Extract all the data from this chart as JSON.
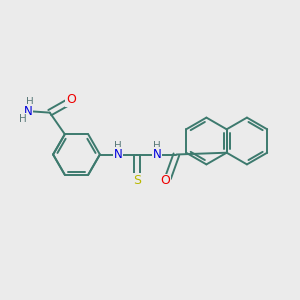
{
  "background_color": "#ebebeb",
  "bond_color": "#3d7a6e",
  "bond_width": 1.4,
  "atom_colors": {
    "N": "#0000dd",
    "O": "#ee0000",
    "S": "#b8b800",
    "H": "#5a7a7a"
  },
  "font_size": 7.5,
  "fig_width": 3.0,
  "fig_height": 3.0,
  "dpi": 100,
  "xlim": [
    0,
    10
  ],
  "ylim": [
    0,
    10
  ]
}
